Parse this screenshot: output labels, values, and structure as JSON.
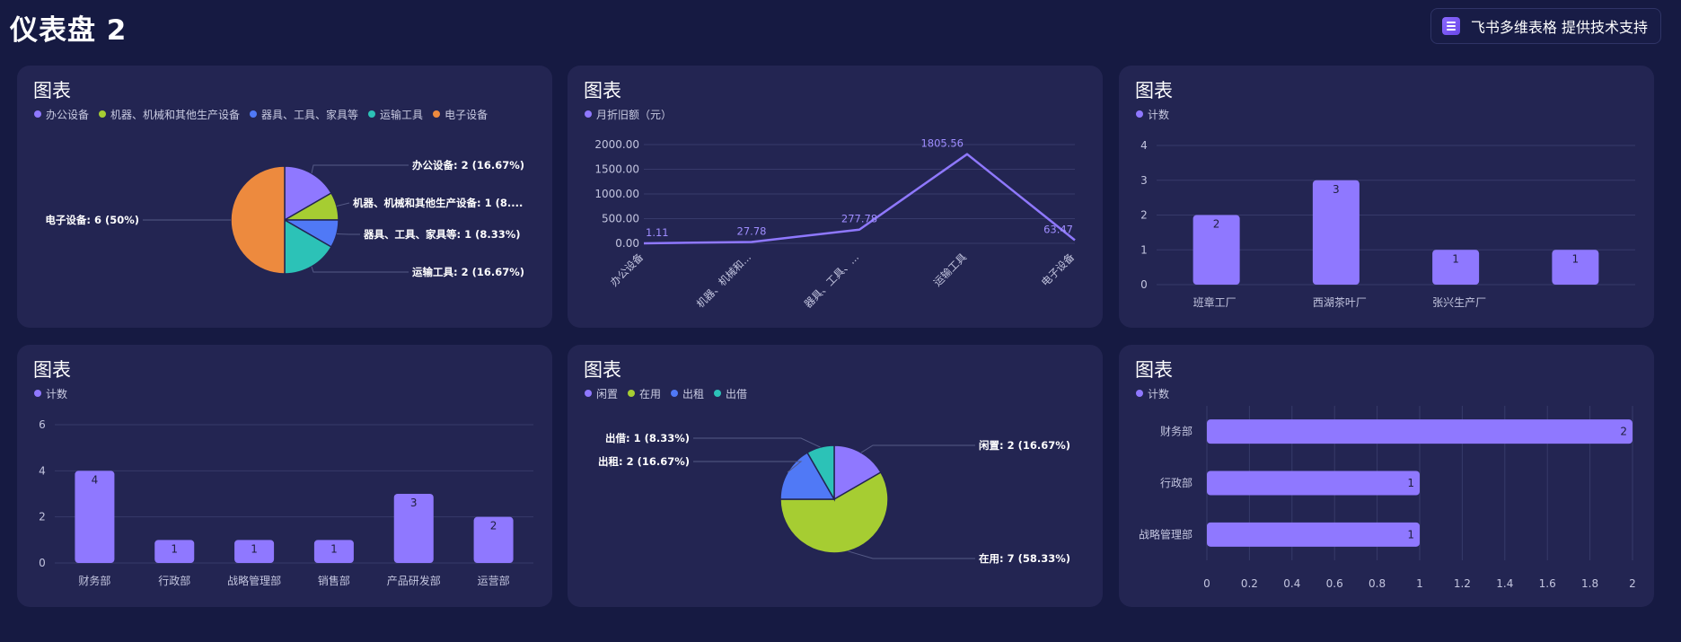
{
  "page": {
    "title": "仪表盘 2"
  },
  "badge": {
    "label": "飞书多维表格 提供技术支持",
    "icon": "table-app-icon"
  },
  "colors": {
    "purple": "#8f78ff",
    "green": "#a6cd32",
    "blue": "#5079f6",
    "teal": "#2cc2b7",
    "orange": "#ed8a3e"
  },
  "chart_data": [
    {
      "type": "pie",
      "title": "图表",
      "slices": [
        {
          "label": "办公设备",
          "value": 2,
          "percent": "16.67%",
          "color": "#8f78ff",
          "callout": "办公设备: 2 (16.67%)"
        },
        {
          "label": "机器、机械和其他生产设备",
          "value": 1,
          "percent": "8.33%",
          "color": "#a6cd32",
          "callout": "机器、机械和其他生产设备: 1 (8...."
        },
        {
          "label": "器具、工具、家具等",
          "value": 1,
          "percent": "8.33%",
          "color": "#5079f6",
          "callout": "器具、工具、家具等: 1 (8.33%)"
        },
        {
          "label": "运输工具",
          "value": 2,
          "percent": "16.67%",
          "color": "#2cc2b7",
          "callout": "运输工具: 2 (16.67%)"
        },
        {
          "label": "电子设备",
          "value": 6,
          "percent": "50%",
          "color": "#ed8a3e",
          "callout": "电子设备: 6 (50%)"
        }
      ]
    },
    {
      "type": "line",
      "title": "图表",
      "series": [
        {
          "name": "月折旧额（元）",
          "color": "#8f78ff",
          "values": [
            1.11,
            27.78,
            277.78,
            1805.56,
            63.47
          ],
          "value_labels": [
            "1.11",
            "27.78",
            "277.78",
            "1805.56",
            "63.47"
          ]
        }
      ],
      "categories": [
        "办公设备",
        "机器、机械和...",
        "器具、工具、...",
        "运输工具",
        "电子设备"
      ],
      "yticks": [
        "0.00",
        "500.00",
        "1000.00",
        "1500.00",
        "2000.00"
      ],
      "ylim": [
        0,
        2000
      ]
    },
    {
      "type": "bar",
      "title": "图表",
      "series": [
        {
          "name": "计数",
          "color": "#8f78ff",
          "values": [
            2,
            3,
            1,
            1
          ]
        }
      ],
      "categories": [
        "班章工厂",
        "西湖茶叶厂",
        "张兴生产厂",
        ""
      ],
      "yticks": [
        "0",
        "1",
        "2",
        "3",
        "4"
      ],
      "ylim": [
        0,
        4
      ]
    },
    {
      "type": "bar",
      "title": "图表",
      "series": [
        {
          "name": "计数",
          "color": "#8f78ff",
          "values": [
            4,
            1,
            1,
            1,
            3,
            2
          ]
        }
      ],
      "categories": [
        "财务部",
        "行政部",
        "战略管理部",
        "销售部",
        "产品研发部",
        "运营部"
      ],
      "yticks": [
        "0",
        "2",
        "4",
        "6"
      ],
      "ylim": [
        0,
        6
      ]
    },
    {
      "type": "pie",
      "title": "图表",
      "slices": [
        {
          "label": "闲置",
          "value": 2,
          "percent": "16.67%",
          "color": "#8f78ff",
          "callout": "闲置: 2 (16.67%)"
        },
        {
          "label": "在用",
          "value": 7,
          "percent": "58.33%",
          "color": "#a6cd32",
          "callout": "在用: 7 (58.33%)"
        },
        {
          "label": "出租",
          "value": 2,
          "percent": "16.67%",
          "color": "#5079f6",
          "callout": "出租: 2 (16.67%)"
        },
        {
          "label": "出借",
          "value": 1,
          "percent": "8.33%",
          "color": "#2cc2b7",
          "callout": "出借: 1 (8.33%)"
        }
      ]
    },
    {
      "type": "bar",
      "orientation": "horizontal",
      "title": "图表",
      "series": [
        {
          "name": "计数",
          "color": "#8f78ff",
          "values": [
            2,
            1,
            1
          ]
        }
      ],
      "categories": [
        "财务部",
        "行政部",
        "战略管理部"
      ],
      "xticks": [
        "0",
        "0.2",
        "0.4",
        "0.6",
        "0.8",
        "1",
        "1.2",
        "1.4",
        "1.6",
        "1.8",
        "2"
      ],
      "xlim": [
        0,
        2
      ]
    }
  ]
}
